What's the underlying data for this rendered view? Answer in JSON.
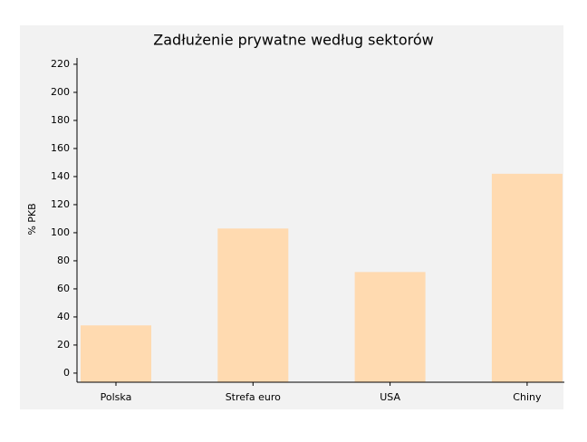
{
  "chart_data": {
    "type": "bar",
    "title": "Zadłużenie prywatne według sektorów",
    "y_label": "% PKB",
    "categories": [
      "Polska",
      "Strefa euro",
      "USA",
      "Chiny"
    ],
    "values": [
      34,
      103,
      72,
      142
    ],
    "color": "#ffdab0",
    "ylim": [
      -6.5,
      224.5
    ],
    "yticks": [
      0,
      20,
      40,
      60,
      80,
      100,
      120,
      140,
      160,
      180,
      200,
      220
    ],
    "grid": false
  }
}
